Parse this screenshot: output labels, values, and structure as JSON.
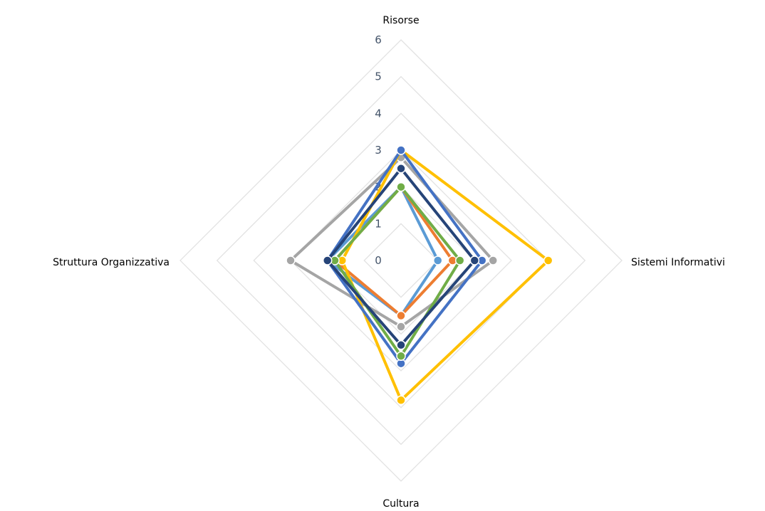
{
  "chart_data": {
    "type": "radar",
    "axes": [
      "Risorse",
      "Sistemi Informativi",
      "Cultura",
      "Struttura Organizzativa"
    ],
    "ticks": [
      "0",
      "1",
      "2",
      "3",
      "4",
      "5",
      "6"
    ],
    "rmin": 0,
    "rmax": 6,
    "grid": true,
    "legend": "none",
    "series": [
      {
        "color": "#5b9bd5",
        "values": [
          2.0,
          1.0,
          1.5,
          2.0
        ]
      },
      {
        "color": "#ed7d31",
        "values": [
          2.0,
          1.4,
          1.5,
          1.8
        ]
      },
      {
        "color": "#a5a5a5",
        "values": [
          2.8,
          2.5,
          1.8,
          3.0
        ]
      },
      {
        "color": "#ffc000",
        "values": [
          3.0,
          4.0,
          3.8,
          1.6
        ]
      },
      {
        "color": "#4472c4",
        "values": [
          3.0,
          2.2,
          2.8,
          2.0
        ]
      },
      {
        "color": "#70ad47",
        "values": [
          2.0,
          1.6,
          2.6,
          1.8
        ]
      },
      {
        "color": "#264478",
        "values": [
          2.5,
          2.0,
          2.3,
          2.0
        ]
      }
    ]
  }
}
